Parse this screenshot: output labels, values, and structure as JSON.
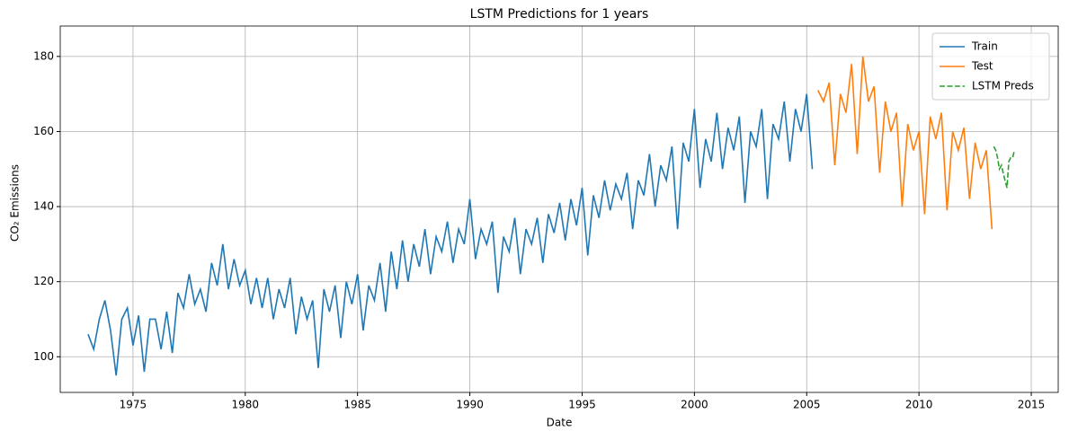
{
  "chart_data": {
    "type": "line",
    "title": "LSTM Predictions for 1 years",
    "xlabel": "Date",
    "ylabel": "CO₂ Emissions",
    "xlim": [
      1971.76,
      2016.2
    ],
    "ylim": [
      90.5,
      188.1
    ],
    "xticks": [
      1975,
      1980,
      1985,
      1990,
      1995,
      2000,
      2005,
      2010,
      2015
    ],
    "yticks": [
      100,
      120,
      140,
      160,
      180
    ],
    "grid": true,
    "legend": "upper right",
    "series": [
      {
        "name": "Train",
        "color": "#1f77b4",
        "dash": "solid",
        "x": [
          1973,
          1973.25,
          1973.5,
          1973.75,
          1974,
          1974.25,
          1974.5,
          1974.75,
          1975,
          1975.25,
          1975.5,
          1975.75,
          1976,
          1976.25,
          1976.5,
          1976.75,
          1977,
          1977.25,
          1977.5,
          1977.75,
          1978,
          1978.25,
          1978.5,
          1978.75,
          1979,
          1979.25,
          1979.5,
          1979.75,
          1980,
          1980.25,
          1980.5,
          1980.75,
          1981,
          1981.25,
          1981.5,
          1981.75,
          1982,
          1982.25,
          1982.5,
          1982.75,
          1983,
          1983.25,
          1983.5,
          1983.75,
          1984,
          1984.25,
          1984.5,
          1984.75,
          1985,
          1985.25,
          1985.5,
          1985.75,
          1986,
          1986.25,
          1986.5,
          1986.75,
          1987,
          1987.25,
          1987.5,
          1987.75,
          1988,
          1988.25,
          1988.5,
          1988.75,
          1989,
          1989.25,
          1989.5,
          1989.75,
          1990,
          1990.25,
          1990.5,
          1990.75,
          1991,
          1991.25,
          1991.5,
          1991.75,
          1992,
          1992.25,
          1992.5,
          1992.75,
          1993,
          1993.25,
          1993.5,
          1993.75,
          1994,
          1994.25,
          1994.5,
          1994.75,
          1995,
          1995.25,
          1995.5,
          1995.75,
          1996,
          1996.25,
          1996.5,
          1996.75,
          1997,
          1997.25,
          1997.5,
          1997.75,
          1998,
          1998.25,
          1998.5,
          1998.75,
          1999,
          1999.25,
          1999.5,
          1999.75,
          2000,
          2000.25,
          2000.5,
          2000.75,
          2001,
          2001.25,
          2001.5,
          2001.75,
          2002,
          2002.25,
          2002.5,
          2002.75,
          2003,
          2003.25,
          2003.5,
          2003.75,
          2004,
          2004.25,
          2004.5,
          2004.75,
          2005,
          2005.25
        ],
        "values": [
          106,
          102,
          110,
          115,
          107,
          95,
          110,
          113,
          103,
          111,
          96,
          110,
          110,
          102,
          112,
          101,
          117,
          113,
          122,
          114,
          118,
          112,
          125,
          119,
          130,
          118,
          126,
          119,
          123,
          114,
          121,
          113,
          121,
          110,
          118,
          113,
          121,
          106,
          116,
          110,
          115,
          97,
          118,
          112,
          119,
          105,
          120,
          114,
          122,
          107,
          119,
          115,
          125,
          112,
          128,
          118,
          131,
          120,
          130,
          124,
          134,
          122,
          132,
          128,
          136,
          125,
          134,
          130,
          142,
          126,
          134,
          130,
          136,
          117,
          132,
          128,
          137,
          122,
          134,
          130,
          137,
          125,
          138,
          133,
          141,
          131,
          142,
          135,
          145,
          127,
          143,
          137,
          147,
          139,
          146,
          142,
          149,
          134,
          147,
          143,
          154,
          140,
          151,
          147,
          156,
          134,
          157,
          152,
          166,
          145,
          158,
          152,
          165,
          150,
          161,
          155,
          164,
          141,
          160,
          156,
          166,
          142,
          162,
          158,
          168,
          152,
          166,
          160,
          170,
          150
        ]
      },
      {
        "name": "Test",
        "color": "#ff7f0e",
        "dash": "solid",
        "x": [
          2005.5,
          2005.75,
          2006,
          2006.25,
          2006.5,
          2006.75,
          2007,
          2007.25,
          2007.5,
          2007.75,
          2008,
          2008.25,
          2008.5,
          2008.75,
          2009,
          2009.25,
          2009.5,
          2009.75,
          2010,
          2010.25,
          2010.5,
          2010.75,
          2011,
          2011.25,
          2011.5,
          2011.75,
          2012,
          2012.25,
          2012.5,
          2012.75,
          2013,
          2013.25
        ],
        "values": [
          171,
          168,
          173,
          151,
          170,
          165,
          178,
          154,
          180,
          168,
          172,
          149,
          168,
          160,
          165,
          140,
          162,
          155,
          160,
          138,
          164,
          158,
          165,
          139,
          160,
          155,
          161,
          142,
          157,
          150,
          155,
          134
        ]
      },
      {
        "name": "LSTM Preds",
        "color": "#2ca02c",
        "dash": "dashed",
        "x": [
          2013.33,
          2013.42,
          2013.5,
          2013.58,
          2013.67,
          2013.75,
          2013.83,
          2013.92,
          2014,
          2014.08,
          2014.17,
          2014.25
        ],
        "values": [
          156,
          155,
          153,
          150,
          151,
          149,
          147,
          145,
          152,
          153,
          153,
          155
        ]
      }
    ]
  }
}
